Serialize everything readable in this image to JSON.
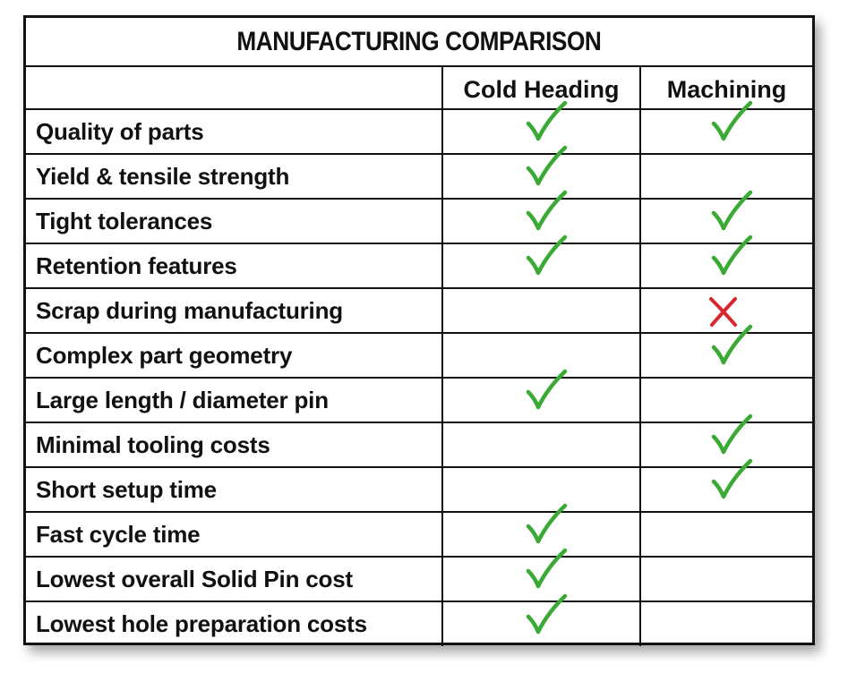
{
  "chart_data": {
    "type": "table",
    "title": "MANUFACTURING COMPARISON",
    "columns": [
      "",
      "Cold Heading",
      "Machining"
    ],
    "rows": [
      {
        "feature": "Quality of parts",
        "cold_heading": "check",
        "machining": "check"
      },
      {
        "feature": "Yield & tensile strength",
        "cold_heading": "check",
        "machining": ""
      },
      {
        "feature": "Tight tolerances",
        "cold_heading": "check",
        "machining": "check"
      },
      {
        "feature": "Retention features",
        "cold_heading": "check",
        "machining": "check"
      },
      {
        "feature": "Scrap during manufacturing",
        "cold_heading": "",
        "machining": "cross"
      },
      {
        "feature": "Complex part geometry",
        "cold_heading": "",
        "machining": "check"
      },
      {
        "feature": "Large length / diameter pin",
        "cold_heading": "check",
        "machining": ""
      },
      {
        "feature": "Minimal tooling costs",
        "cold_heading": "",
        "machining": "check"
      },
      {
        "feature": "Short setup time",
        "cold_heading": "",
        "machining": "check"
      },
      {
        "feature": "Fast cycle time",
        "cold_heading": "check",
        "machining": ""
      },
      {
        "feature": "Lowest overall Solid Pin cost",
        "cold_heading": "check",
        "machining": ""
      },
      {
        "feature": "Lowest hole preparation costs",
        "cold_heading": "check",
        "machining": ""
      }
    ]
  },
  "icons": {
    "check": "checkmark-icon",
    "cross": "x-mark-icon"
  },
  "colors": {
    "check": "#3aaa35",
    "cross": "#d8262c",
    "border": "#111111"
  }
}
